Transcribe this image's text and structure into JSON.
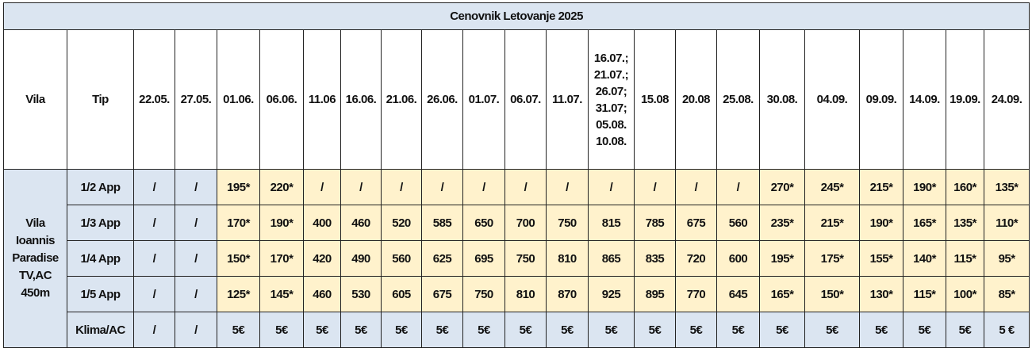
{
  "title": "Cenovnik Letovanje 2025",
  "header": [
    "Vila",
    "Tip",
    "22.05.",
    "27.05.",
    "01.06.",
    "06.06.",
    "11.06",
    "16.06.",
    "21.06.",
    "26.06.",
    "01.07.",
    "06.07.",
    "11.07.",
    [
      "16.07.;",
      "21.07.;",
      "26.07;",
      "31.07;",
      "05.08.",
      "10.08."
    ],
    "15.08",
    "20.08",
    "25.08.",
    "30.08.",
    "04.09.",
    "09.09.",
    "14.09.",
    "19.09.",
    "24.09."
  ],
  "vila": [
    "Vila",
    "Ioannis",
    "Paradise",
    "TV,AC",
    "450m"
  ],
  "rows": [
    {
      "tip": "1/2 App",
      "cells": [
        "/",
        "/",
        "195*",
        "220*",
        "/",
        "/",
        "/",
        "/",
        "/",
        "/",
        "/",
        "/",
        "/",
        "/",
        "/",
        "270*",
        "245*",
        "215*",
        "190*",
        "160*",
        "135*"
      ]
    },
    {
      "tip": "1/3 App",
      "cells": [
        "/",
        "/",
        "170*",
        "190*",
        "400",
        "460",
        "520",
        "585",
        "650",
        "700",
        "750",
        "815",
        "785",
        "675",
        "560",
        "235*",
        "215*",
        "190*",
        "165*",
        "135*",
        "110*"
      ]
    },
    {
      "tip": "1/4 App",
      "cells": [
        "/",
        "/",
        "150*",
        "170*",
        "420",
        "490",
        "560",
        "625",
        "695",
        "750",
        "810",
        "865",
        "835",
        "720",
        "600",
        "195*",
        "175*",
        "155*",
        "140*",
        "115*",
        "95*"
      ]
    },
    {
      "tip": "1/5 App",
      "cells": [
        "/",
        "/",
        "125*",
        "145*",
        "460",
        "530",
        "605",
        "675",
        "750",
        "810",
        "870",
        "925",
        "895",
        "770",
        "645",
        "165*",
        "150*",
        "130*",
        "115*",
        "100*",
        "85*"
      ]
    },
    {
      "tip": "Klima/AC",
      "cells": [
        "/",
        "/",
        "5€",
        "5€",
        "5€",
        "5€",
        "5€",
        "5€",
        "5€",
        "5€",
        "5€",
        "5€",
        "5€",
        "5€",
        "5€",
        "5€",
        "5€",
        "5€",
        "5€",
        "5€",
        "5 €"
      ]
    }
  ]
}
